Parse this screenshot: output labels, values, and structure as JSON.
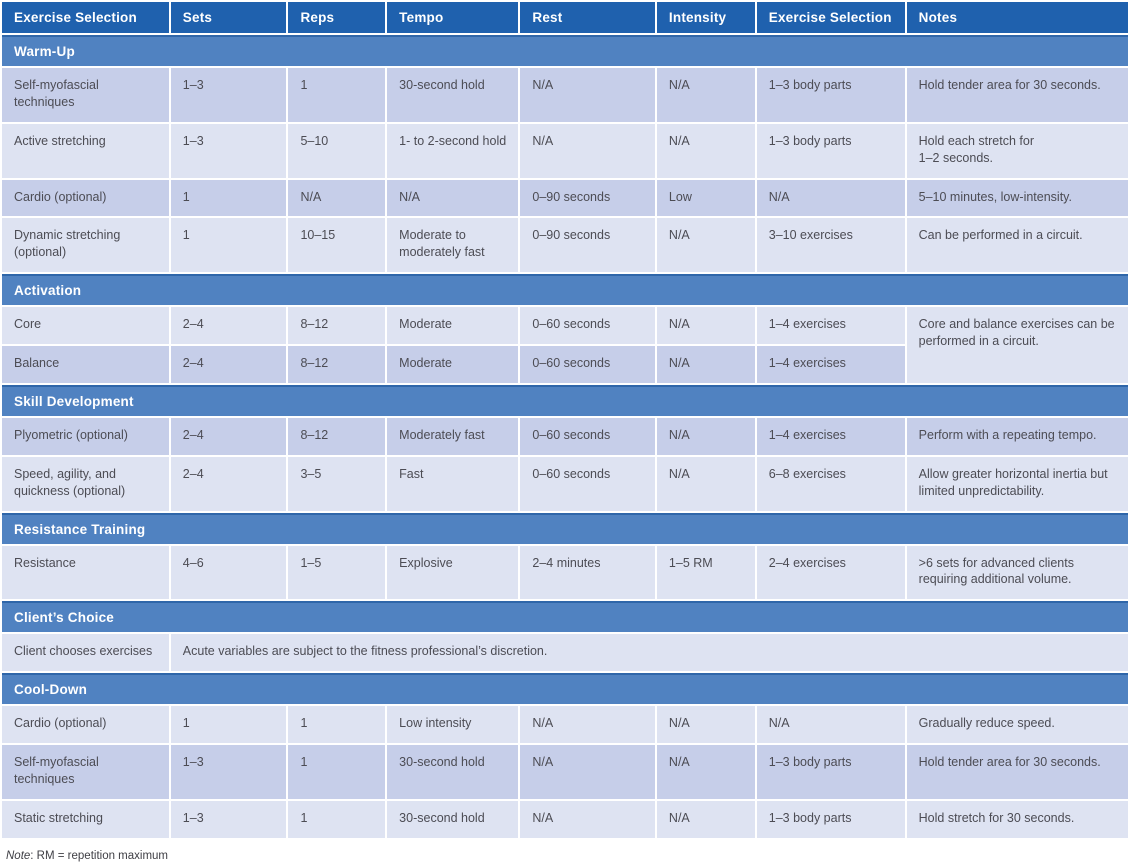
{
  "colors": {
    "header_bg": "#1f61ae",
    "section_bg": "#5082c1",
    "row_dark": "#c6cee9",
    "row_light": "#dee3f2",
    "text": "#4c4c54"
  },
  "table": {
    "columns": [
      {
        "label": "Exercise Selection",
        "width": "15.0%"
      },
      {
        "label": "Sets",
        "width": "10.4%"
      },
      {
        "label": "Reps",
        "width": "8.7%"
      },
      {
        "label": "Tempo",
        "width": "11.8%"
      },
      {
        "label": "Rest",
        "width": "12.1%"
      },
      {
        "label": "Intensity",
        "width": "8.8%"
      },
      {
        "label": "Exercise Selection",
        "width": "13.3%"
      },
      {
        "label": "Notes",
        "width": "19.9%"
      }
    ],
    "sections": [
      {
        "title": "Warm-Up",
        "rows": [
          {
            "shade": "dark",
            "cells": [
              {
                "t": "Self-myofascial techniques"
              },
              {
                "t": "1–3"
              },
              {
                "t": "1"
              },
              {
                "t": "30-second hold"
              },
              {
                "t": "N/A"
              },
              {
                "t": "N/A"
              },
              {
                "t": "1–3 body parts"
              },
              {
                "t": "Hold tender area for 30 seconds."
              }
            ]
          },
          {
            "shade": "light",
            "cells": [
              {
                "t": "Active stretching"
              },
              {
                "t": "1–3"
              },
              {
                "t": "5–10"
              },
              {
                "t": "1- to 2-second hold"
              },
              {
                "t": "N/A"
              },
              {
                "t": "N/A"
              },
              {
                "t": "1–3 body parts"
              },
              {
                "t": "Hold each stretch for\n1–2 seconds."
              }
            ]
          },
          {
            "shade": "dark",
            "cells": [
              {
                "t": "Cardio (optional)"
              },
              {
                "t": "1"
              },
              {
                "t": "N/A"
              },
              {
                "t": "N/A"
              },
              {
                "t": "0–90 seconds"
              },
              {
                "t": "Low"
              },
              {
                "t": "N/A"
              },
              {
                "t": "5–10 minutes, low-intensity."
              }
            ]
          },
          {
            "shade": "light",
            "cells": [
              {
                "t": "Dynamic stretching (optional)"
              },
              {
                "t": "1"
              },
              {
                "t": "10–15"
              },
              {
                "t": "Moderate to moderately fast"
              },
              {
                "t": "0–90 seconds"
              },
              {
                "t": "N/A"
              },
              {
                "t": "3–10 exercises"
              },
              {
                "t": "Can be performed in a circuit."
              }
            ]
          }
        ]
      },
      {
        "title": "Activation",
        "rows": [
          {
            "shade": "light",
            "cells": [
              {
                "t": "Core"
              },
              {
                "t": "2–4"
              },
              {
                "t": "8–12"
              },
              {
                "t": "Moderate"
              },
              {
                "t": "0–60 seconds"
              },
              {
                "t": "N/A"
              },
              {
                "t": "1–4 exercises"
              },
              {
                "t": "Core and balance exercises can be performed in a circuit.",
                "rs": 2,
                "shade": "light"
              }
            ]
          },
          {
            "shade": "dark",
            "cells": [
              {
                "t": "Balance"
              },
              {
                "t": "2–4"
              },
              {
                "t": "8–12"
              },
              {
                "t": "Moderate"
              },
              {
                "t": "0–60 seconds"
              },
              {
                "t": "N/A"
              },
              {
                "t": "1–4 exercises"
              }
            ]
          }
        ]
      },
      {
        "title": "Skill Development",
        "rows": [
          {
            "shade": "dark",
            "cells": [
              {
                "t": "Plyometric (optional)"
              },
              {
                "t": "2–4"
              },
              {
                "t": "8–12"
              },
              {
                "t": "Moderately fast"
              },
              {
                "t": "0–60 seconds"
              },
              {
                "t": "N/A"
              },
              {
                "t": "1–4 exercises"
              },
              {
                "t": "Perform with a repeating tempo."
              }
            ]
          },
          {
            "shade": "light",
            "cells": [
              {
                "t": "Speed, agility, and quickness (optional)"
              },
              {
                "t": "2–4"
              },
              {
                "t": "3–5"
              },
              {
                "t": "Fast"
              },
              {
                "t": "0–60 seconds"
              },
              {
                "t": "N/A"
              },
              {
                "t": "6–8 exercises"
              },
              {
                "t": "Allow greater horizontal inertia but limited unpredictability."
              }
            ]
          }
        ]
      },
      {
        "title": "Resistance Training",
        "rows": [
          {
            "shade": "light",
            "cells": [
              {
                "t": "Resistance"
              },
              {
                "t": "4–6"
              },
              {
                "t": "1–5"
              },
              {
                "t": "Explosive"
              },
              {
                "t": "2–4 minutes"
              },
              {
                "t": "1–5 RM"
              },
              {
                "t": "2–4 exercises"
              },
              {
                "t": ">6 sets for advanced clients requiring additional volume."
              }
            ]
          }
        ]
      },
      {
        "title": "Client’s Choice",
        "rows": [
          {
            "shade": "light",
            "cells": [
              {
                "t": "Client chooses exercises"
              },
              {
                "t": "Acute variables are subject to the fitness professional’s discretion.",
                "cs": 7
              }
            ]
          }
        ]
      },
      {
        "title": "Cool-Down",
        "rows": [
          {
            "shade": "light",
            "cells": [
              {
                "t": "Cardio (optional)"
              },
              {
                "t": "1"
              },
              {
                "t": "1"
              },
              {
                "t": "Low intensity"
              },
              {
                "t": "N/A"
              },
              {
                "t": "N/A"
              },
              {
                "t": "N/A"
              },
              {
                "t": "Gradually reduce speed."
              }
            ]
          },
          {
            "shade": "dark",
            "cells": [
              {
                "t": "Self-myofascial techniques"
              },
              {
                "t": "1–3"
              },
              {
                "t": "1"
              },
              {
                "t": "30-second hold"
              },
              {
                "t": "N/A"
              },
              {
                "t": "N/A"
              },
              {
                "t": "1–3 body parts"
              },
              {
                "t": "Hold tender area for 30 seconds."
              }
            ]
          },
          {
            "shade": "light",
            "cells": [
              {
                "t": "Static stretching"
              },
              {
                "t": "1–3"
              },
              {
                "t": "1"
              },
              {
                "t": "30-second hold"
              },
              {
                "t": "N/A"
              },
              {
                "t": "N/A"
              },
              {
                "t": "1–3 body parts"
              },
              {
                "t": "Hold stretch for 30 seconds."
              }
            ]
          }
        ]
      }
    ]
  },
  "footnote": {
    "label": "Note",
    "text": ": RM = repetition maximum"
  }
}
